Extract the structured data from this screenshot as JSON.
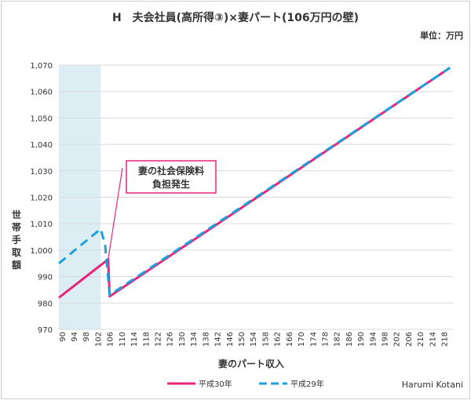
{
  "chart_data": {
    "type": "line",
    "title": "H　夫会社員(高所得③)×妻パート(106万円の壁)",
    "unit_label": "単位：万円",
    "xlabel": "妻のパート収入",
    "ylabel": "世帯手取額",
    "x_ticks": [
      90,
      94,
      98,
      102,
      106,
      110,
      114,
      118,
      122,
      126,
      130,
      134,
      138,
      142,
      146,
      150,
      154,
      158,
      162,
      166,
      170,
      174,
      178,
      182,
      186,
      190,
      194,
      198,
      202,
      206,
      210,
      214,
      218
    ],
    "ylim": [
      970,
      1070
    ],
    "y_ticks": [
      "970",
      "980",
      "990",
      "1,000",
      "1,010",
      "1,020",
      "1,030",
      "1,040",
      "1,050",
      "1,060",
      "1,070"
    ],
    "shaded_region": {
      "x_from": 89,
      "x_to": 103
    },
    "annotation": {
      "lines": [
        "妻の社会保険料",
        "負担発生"
      ],
      "points_to": [
        105.5,
        996.5
      ]
    },
    "legend_position": "bottom",
    "series": [
      {
        "name": "平成30年",
        "color": "#e6267a",
        "dash": "solid",
        "points": [
          [
            89,
            982
          ],
          [
            105.5,
            996.5
          ],
          [
            106,
            982.5
          ],
          [
            220,
            1069
          ]
        ]
      },
      {
        "name": "平成29年",
        "color": "#1ea1db",
        "dash": "dashed",
        "points": [
          [
            89,
            995
          ],
          [
            103,
            1008
          ],
          [
            104.5,
            1002
          ],
          [
            106,
            983
          ],
          [
            220,
            1069
          ]
        ]
      }
    ],
    "credit": "Harumi Kotani"
  }
}
